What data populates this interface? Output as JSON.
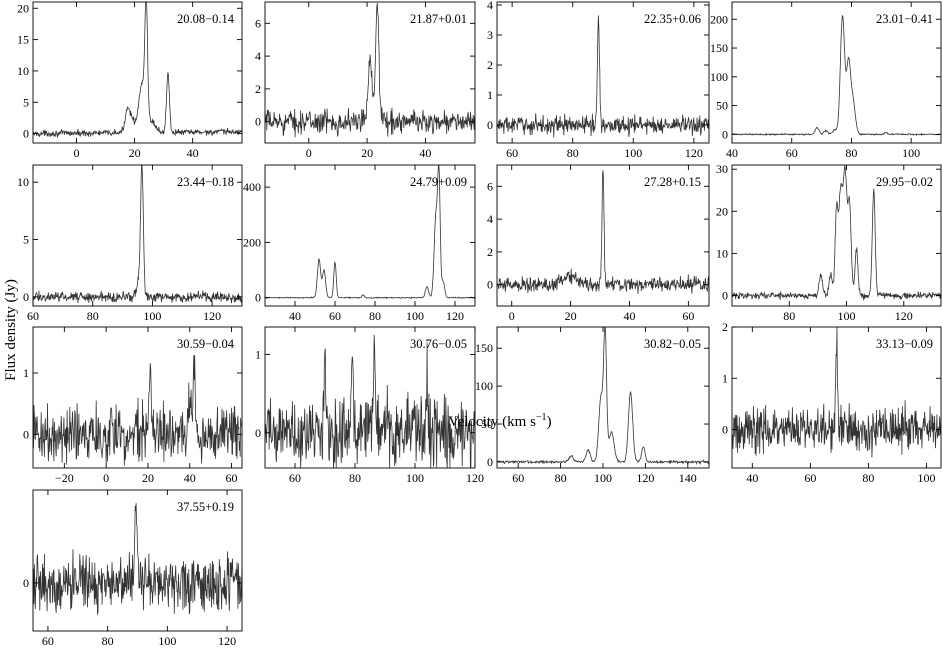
{
  "figure": {
    "ylabel": "Flux density (Jy)",
    "xlabel": "Velocity (km s",
    "xlabel_sup": "−1",
    "xlabel_close": ")"
  },
  "chart_data": [
    {
      "type": "line",
      "title": "20.08−0.14",
      "xlim": [
        -15,
        57
      ],
      "ylim": [
        -1.5,
        21
      ],
      "xticks": [
        0,
        20,
        40
      ],
      "yticks": [
        0,
        5,
        10,
        15,
        20
      ],
      "noise": 0.25,
      "baseline_slope": 0.004,
      "peaks": [
        {
          "v": 17.5,
          "a": 3.0,
          "w": 0.8
        },
        {
          "v": 19,
          "a": 2.2,
          "w": 1.2
        },
        {
          "v": 22.5,
          "a": 7.5,
          "w": 1.0
        },
        {
          "v": 24,
          "a": 19.0,
          "w": 0.45
        },
        {
          "v": 25.5,
          "a": 2.0,
          "w": 1.5
        },
        {
          "v": 31.5,
          "a": 9.5,
          "w": 0.5
        }
      ]
    },
    {
      "type": "line",
      "title": "21.87+0.01",
      "xlim": [
        -15,
        57
      ],
      "ylim": [
        -1.3,
        7.3
      ],
      "xticks": [
        0,
        20,
        40
      ],
      "yticks": [
        0,
        2,
        4,
        6
      ],
      "noise": 0.35,
      "baseline_slope": 0,
      "peaks": [
        {
          "v": 21,
          "a": 3.3,
          "w": 0.6
        },
        {
          "v": 23.5,
          "a": 6.9,
          "w": 0.5
        },
        {
          "v": 22.5,
          "a": 1.0,
          "w": 1.5
        }
      ]
    },
    {
      "type": "line",
      "title": "22.35+0.06",
      "xlim": [
        55,
        125
      ],
      "ylim": [
        -0.6,
        4.1
      ],
      "xticks": [
        60,
        80,
        100,
        120
      ],
      "yticks": [
        0,
        1,
        2,
        3,
        4
      ],
      "noise": 0.15,
      "baseline_slope": 0,
      "peaks": [
        {
          "v": 88.5,
          "a": 3.5,
          "w": 0.35
        }
      ]
    },
    {
      "type": "line",
      "title": "23.01−0.41",
      "xlim": [
        40,
        110
      ],
      "ylim": [
        -15,
        230
      ],
      "xticks": [
        40,
        60,
        80,
        100
      ],
      "yticks": [
        0,
        50,
        100,
        150,
        200
      ],
      "noise": 0.6,
      "baseline_slope": 0,
      "peaks": [
        {
          "v": 68.5,
          "a": 12,
          "w": 0.6
        },
        {
          "v": 71.5,
          "a": 6,
          "w": 0.7
        },
        {
          "v": 74.5,
          "a": 8,
          "w": 0.7
        },
        {
          "v": 77,
          "a": 205,
          "w": 0.7
        },
        {
          "v": 79,
          "a": 120,
          "w": 0.7
        },
        {
          "v": 80.5,
          "a": 55,
          "w": 0.8
        },
        {
          "v": 91.5,
          "a": 3,
          "w": 0.5
        }
      ]
    },
    {
      "type": "line",
      "title": "23.44−0.18",
      "xlim": [
        60,
        130
      ],
      "ylim": [
        -0.8,
        11.5
      ],
      "xticks": [
        60,
        80,
        100,
        120
      ],
      "yticks": [
        0,
        5,
        10
      ],
      "noise": 0.22,
      "baseline_slope": 0,
      "peaks": [
        {
          "v": 96.5,
          "a": 10.8,
          "w": 0.45
        },
        {
          "v": 95.5,
          "a": 1.5,
          "w": 0.8
        }
      ]
    },
    {
      "type": "line",
      "title": "24.79+0.09",
      "xlim": [
        25,
        130
      ],
      "ylim": [
        -30,
        480
      ],
      "xticks": [
        40,
        60,
        80,
        100,
        120
      ],
      "yticks": [
        0,
        200,
        400
      ],
      "noise": 1.0,
      "baseline_slope": 0,
      "peaks": [
        {
          "v": 52,
          "a": 140,
          "w": 0.8
        },
        {
          "v": 54.5,
          "a": 100,
          "w": 0.8
        },
        {
          "v": 60,
          "a": 130,
          "w": 0.6
        },
        {
          "v": 74,
          "a": 10,
          "w": 0.6
        },
        {
          "v": 106,
          "a": 40,
          "w": 0.8
        },
        {
          "v": 110.5,
          "a": 300,
          "w": 0.9
        },
        {
          "v": 112,
          "a": 410,
          "w": 0.6
        },
        {
          "v": 114,
          "a": 60,
          "w": 0.8
        }
      ]
    },
    {
      "type": "line",
      "title": "27.28+0.15",
      "xlim": [
        -5,
        67
      ],
      "ylim": [
        -1.3,
        7.3
      ],
      "xticks": [
        0,
        20,
        40,
        60
      ],
      "yticks": [
        0,
        2,
        4,
        6
      ],
      "noise": 0.22,
      "baseline_slope": 0,
      "peaks": [
        {
          "v": 31,
          "a": 6.8,
          "w": 0.35
        },
        {
          "v": 20,
          "a": 0.5,
          "w": 3.0
        }
      ]
    },
    {
      "type": "line",
      "title": "29.95−0.02",
      "xlim": [
        60,
        133
      ],
      "ylim": [
        -2.5,
        31
      ],
      "xticks": [
        80,
        100,
        120
      ],
      "yticks": [
        0,
        10,
        20,
        30
      ],
      "noise": 0.4,
      "baseline_slope": 0,
      "peaks": [
        {
          "v": 91,
          "a": 5,
          "w": 0.6
        },
        {
          "v": 94.5,
          "a": 5,
          "w": 0.6
        },
        {
          "v": 96.5,
          "a": 19,
          "w": 0.5
        },
        {
          "v": 98,
          "a": 25,
          "w": 0.7
        },
        {
          "v": 99.5,
          "a": 27,
          "w": 0.6
        },
        {
          "v": 101,
          "a": 22,
          "w": 0.6
        },
        {
          "v": 103.5,
          "a": 11,
          "w": 0.5
        },
        {
          "v": 109.5,
          "a": 25,
          "w": 0.5
        }
      ]
    },
    {
      "type": "line",
      "title": "30.59−0.04",
      "xlim": [
        -35,
        65
      ],
      "ylim": [
        -0.55,
        1.75
      ],
      "xticks": [
        -20,
        0,
        20,
        40,
        60
      ],
      "yticks": [
        0,
        1
      ],
      "noise": 0.22,
      "baseline_slope": 0,
      "peaks": [
        {
          "v": 21,
          "a": 1.05,
          "w": 0.5
        },
        {
          "v": 42,
          "a": 1.2,
          "w": 0.5
        },
        {
          "v": 40,
          "a": 0.6,
          "w": 0.6
        }
      ]
    },
    {
      "type": "line",
      "title": "30.76−0.05",
      "xlim": [
        50,
        120
      ],
      "ylim": [
        -0.45,
        1.35
      ],
      "xticks": [
        60,
        80,
        100,
        120
      ],
      "yticks": [
        0,
        1
      ],
      "noise": 0.22,
      "baseline_slope": 0,
      "peaks": [
        {
          "v": 70,
          "a": 1.05,
          "w": 0.4
        },
        {
          "v": 79,
          "a": 0.8,
          "w": 0.4
        },
        {
          "v": 86.5,
          "a": 1.1,
          "w": 0.4
        },
        {
          "v": 104,
          "a": 0.6,
          "w": 0.4
        }
      ]
    },
    {
      "type": "line",
      "title": "30.82−0.05",
      "xlim": [
        50,
        150
      ],
      "ylim": [
        -8,
        178
      ],
      "xticks": [
        60,
        80,
        100,
        120,
        140
      ],
      "yticks": [
        0,
        50,
        100,
        150
      ],
      "noise": 0.8,
      "baseline_slope": 0,
      "peaks": [
        {
          "v": 85,
          "a": 8,
          "w": 1.0
        },
        {
          "v": 93,
          "a": 15,
          "w": 1.0
        },
        {
          "v": 99,
          "a": 85,
          "w": 1.0
        },
        {
          "v": 101,
          "a": 168,
          "w": 0.7
        },
        {
          "v": 104,
          "a": 40,
          "w": 1.2
        },
        {
          "v": 113,
          "a": 92,
          "w": 1.0
        },
        {
          "v": 119,
          "a": 20,
          "w": 0.8
        }
      ]
    },
    {
      "type": "line",
      "title": "33.13−0.09",
      "xlim": [
        33,
        105
      ],
      "ylim": [
        -0.75,
        2.0
      ],
      "xticks": [
        40,
        60,
        80,
        100
      ],
      "yticks": [
        0,
        1,
        2
      ],
      "noise": 0.22,
      "baseline_slope": 0,
      "peaks": [
        {
          "v": 69,
          "a": 1.65,
          "w": 0.35
        }
      ]
    },
    {
      "type": "line",
      "title": "37.55+0.19",
      "xlim": [
        55,
        125
      ],
      "ylim": [
        -0.75,
        1.45
      ],
      "xticks": [
        60,
        80,
        100,
        120
      ],
      "yticks": [
        0
      ],
      "noise": 0.2,
      "baseline_slope": 0,
      "peaks": [
        {
          "v": 89.5,
          "a": 1.05,
          "w": 0.45
        }
      ]
    }
  ]
}
